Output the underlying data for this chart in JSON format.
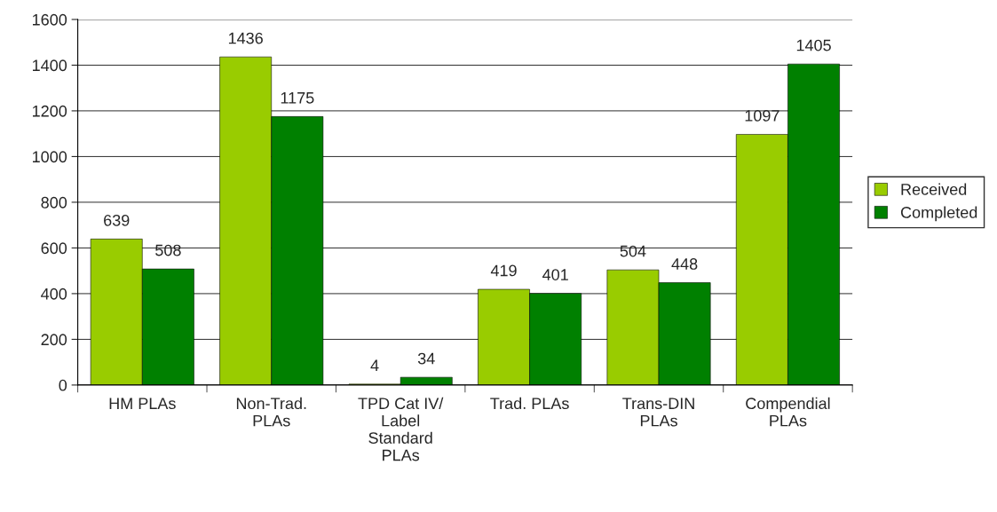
{
  "chart_data": {
    "type": "bar",
    "categories": [
      "HM PLAs",
      "Non-Trad.\nPLAs",
      "TPD Cat IV/\nLabel\nStandard\nPLAs",
      "Trad. PLAs",
      "Trans-DIN\nPLAs",
      "Compendial\nPLAs"
    ],
    "series": [
      {
        "name": "Received",
        "color": "#99cc00",
        "values": [
          639,
          1436,
          4,
          419,
          504,
          1097
        ]
      },
      {
        "name": "Completed",
        "color": "#008000",
        "values": [
          508,
          1175,
          34,
          401,
          448,
          1405
        ]
      }
    ],
    "ylim": [
      0,
      1600
    ],
    "yticks": [
      0,
      200,
      400,
      600,
      800,
      1000,
      1200,
      1400,
      1600
    ],
    "grid": "y",
    "legend": "right",
    "data_labels": true
  }
}
